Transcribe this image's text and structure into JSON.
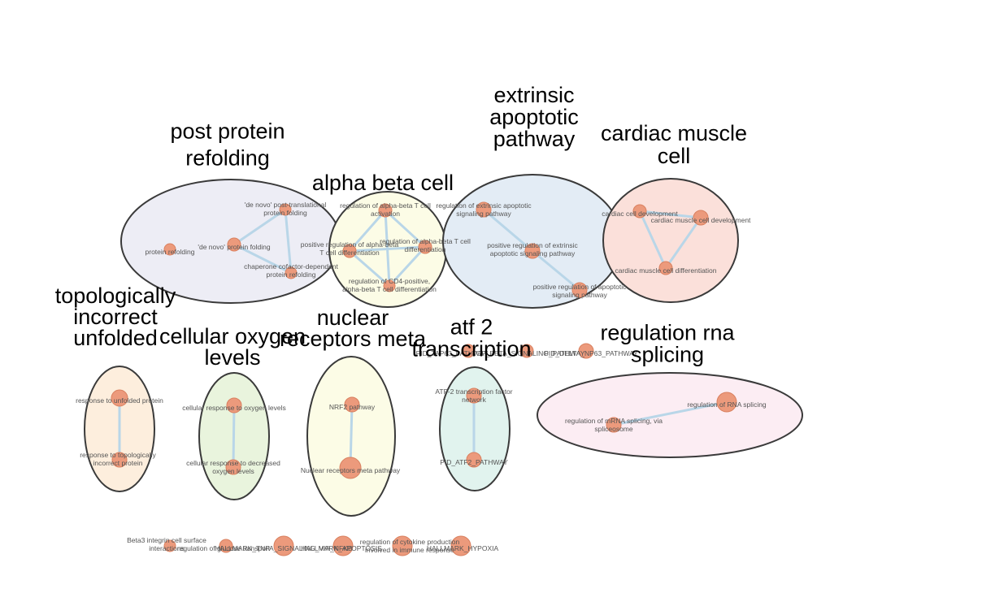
{
  "clusters": [
    {
      "title_lines": [
        "post protein",
        "refolding"
      ],
      "fill": "#ededf5"
    },
    {
      "title_lines": [
        "alpha beta cell"
      ],
      "fill": "#fcfce6"
    },
    {
      "title_lines": [
        "extrinsic",
        "apoptotic",
        "pathway"
      ],
      "fill": "#e3ecf5"
    },
    {
      "title_lines": [
        "cardiac muscle",
        "cell"
      ],
      "fill": "#fbe0da"
    },
    {
      "title_lines": [
        "topologically",
        "incorrect",
        "unfolded"
      ],
      "fill": "#fdeedd"
    },
    {
      "title_lines": [
        "cellular oxygen",
        "levels"
      ],
      "fill": "#e9f4dd"
    },
    {
      "title_lines": [
        "nuclear",
        "receptors meta"
      ],
      "fill": "#fcfce6"
    },
    {
      "title_lines": [
        "atf 2",
        "transcription"
      ],
      "fill": "#e1f3ee"
    },
    {
      "title_lines": [
        "regulation rna",
        "splicing"
      ],
      "fill": "#fcedf3"
    }
  ],
  "nodes": {
    "n_denovo_post": [
      "'de novo' post-translational",
      "protein folding"
    ],
    "n_protein_refolding": [
      "protein refolding"
    ],
    "n_denovo": [
      "'de novo' protein folding"
    ],
    "n_chaperone": [
      "chaperone cofactor-dependent",
      "protein refolding"
    ],
    "n_reg_ab_act": [
      "regulation of alpha-beta T cell",
      "activation"
    ],
    "n_pos_reg_ab_diff": [
      "positive regulation of alpha-beta",
      "T cell differentiation"
    ],
    "n_reg_ab_diff": [
      "regulation of alpha-beta T cell",
      "differentiation"
    ],
    "n_reg_cd4": [
      "regulation of CD4-positive,",
      "alpha-beta T cell differentiation"
    ],
    "n_reg_extrinsic": [
      "regulation of extrinsic apoptotic",
      "signaling pathway"
    ],
    "n_pos_reg_extrinsic": [
      "positive regulation of extrinsic",
      "apoptotic signaling pathway"
    ],
    "n_pos_reg_apoptotic": [
      "positive regulation of apoptotic",
      "signaling pathway"
    ],
    "n_cardiac_dev": [
      "cardiac cell development"
    ],
    "n_cardiac_muscle_dev": [
      "cardiac muscle cell development"
    ],
    "n_cardiac_muscle_diff": [
      "cardiac muscle cell differentiation"
    ],
    "n_resp_unfolded": [
      "response to unfolded protein"
    ],
    "n_resp_topo": [
      "response to topologically",
      "incorrect protein"
    ],
    "n_cell_resp_oxygen": [
      "cellular response to oxygen levels"
    ],
    "n_cell_resp_decreased": [
      "cellular response to decreased",
      "oxygen levels"
    ],
    "n_nrf2": [
      "NRF2 pathway"
    ],
    "n_nuclear_meta": [
      "Nuclear receptors meta pathway"
    ],
    "n_atf2_network": [
      "ATF-2 transcription factor",
      "network"
    ],
    "n_pid_atf2": [
      "PID_ATF2_PATHWAY"
    ],
    "n_reg_rna": [
      "regulation of RNA splicing"
    ],
    "n_reg_mrna": [
      "regulation of mRNA splicing, via",
      "spliceosome"
    ],
    "n_pid_tap63": [
      "PID_TAP63_PATHWAY"
    ],
    "n_tgfb": [
      "TGF_BETA_SIGNALING_PATHWAY"
    ],
    "n_pid_delta_np63": [
      "PID_DELTA_NP63_PATHWAY"
    ],
    "n_beta3": [
      "Beta3 integrin cell surface",
      "interactions"
    ],
    "n_reg_glucose": [
      "regulation of glucose transport"
    ],
    "n_hallmark_tnfa": [
      "HALLMARK_TNFA_SIGNALING_VIA_NFKB"
    ],
    "n_hallmark_apoptosis": [
      "HALLMARK_APOPTOSIS"
    ],
    "n_reg_cytokine": [
      "regulation of cytokine production",
      "involved in immune response"
    ],
    "n_hallmark_hypoxia": [
      "HALLMARK_HYPOXIA"
    ]
  }
}
